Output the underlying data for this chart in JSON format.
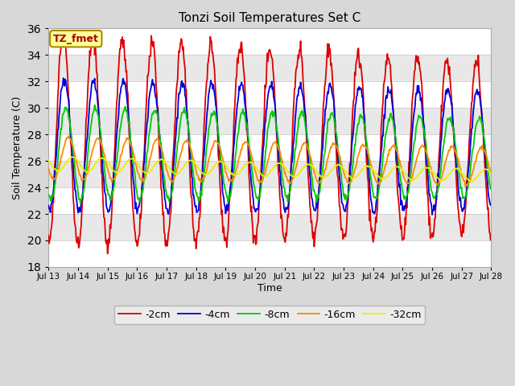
{
  "title": "Tonzi Soil Temperatures Set C",
  "xlabel": "Time",
  "ylabel": "Soil Temperature (C)",
  "ylim": [
    18,
    36
  ],
  "xlim": [
    0,
    360
  ],
  "xtick_labels": [
    "Jul 13",
    "Jul 14",
    "Jul 15",
    "Jul 16",
    "Jul 17",
    "Jul 18",
    "Jul 19",
    "Jul 20",
    "Jul 21",
    "Jul 22",
    "Jul 23",
    "Jul 24",
    "Jul 25",
    "Jul 26",
    "Jul 27",
    "Jul 28"
  ],
  "xtick_positions": [
    0,
    24,
    48,
    72,
    96,
    120,
    144,
    168,
    192,
    216,
    240,
    264,
    288,
    312,
    336,
    360
  ],
  "yticks": [
    18,
    20,
    22,
    24,
    26,
    28,
    30,
    32,
    34,
    36
  ],
  "series": [
    {
      "label": "-2cm",
      "color": "#dd0000",
      "mean_s": 27.5,
      "mean_e": 27.0,
      "amp_s": 8.0,
      "amp_e": 6.5,
      "phase": 0.0
    },
    {
      "label": "-4cm",
      "color": "#0000dd",
      "mean_s": 27.2,
      "mean_e": 26.8,
      "amp_s": 5.0,
      "amp_e": 4.5,
      "phase": 0.2
    },
    {
      "label": "-8cm",
      "color": "#00cc00",
      "mean_s": 26.6,
      "mean_e": 26.2,
      "amp_s": 3.5,
      "amp_e": 3.0,
      "phase": 0.55
    },
    {
      "label": "-16cm",
      "color": "#ff8800",
      "mean_s": 26.2,
      "mean_e": 25.6,
      "amp_s": 1.6,
      "amp_e": 1.4,
      "phase": 1.1
    },
    {
      "label": "-32cm",
      "color": "#eeee00",
      "mean_s": 25.8,
      "mean_e": 24.9,
      "amp_s": 0.55,
      "amp_e": 0.45,
      "phase": 2.0
    }
  ],
  "annotation_text": "TZ_fmet",
  "annotation_bg": "#ffff99",
  "annotation_border": "#aa8800",
  "fig_bg": "#d8d8d8",
  "band_colors": [
    "#ffffff",
    "#e8e8e8"
  ],
  "grid_color": "#cccccc",
  "n_points": 721,
  "period": 24,
  "linewidth": 1.3
}
